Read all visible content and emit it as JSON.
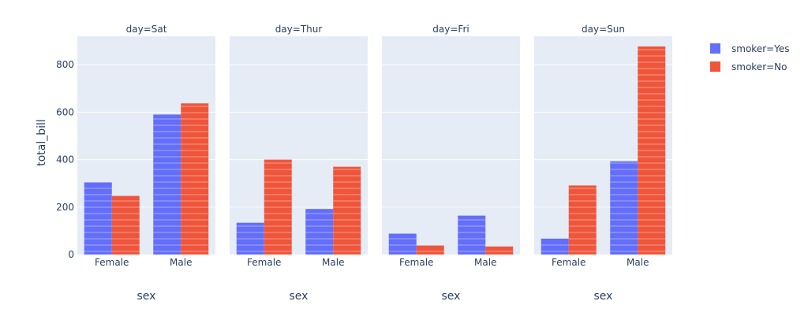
{
  "chart_data": {
    "type": "bar",
    "barmode": "group",
    "facet_titles": [
      "day=Sat",
      "day=Thur",
      "day=Fri",
      "day=Sun"
    ],
    "categories": [
      "Female",
      "Male"
    ],
    "xlabel": "sex",
    "ylabel": "total_bill",
    "ylim": [
      0,
      920
    ],
    "yticks": [
      0,
      200,
      400,
      600,
      800
    ],
    "grid": true,
    "legend_position": "top-right",
    "series": [
      {
        "name": "smoker=Yes",
        "color": "#636efa",
        "values": [
          [
            304,
            590
          ],
          [
            134,
            192
          ],
          [
            88,
            164
          ],
          [
            67,
            393
          ]
        ]
      },
      {
        "name": "smoker=No",
        "color": "#ef553b",
        "values": [
          [
            247,
            637
          ],
          [
            400,
            370
          ],
          [
            38,
            34
          ],
          [
            291,
            877
          ]
        ]
      }
    ]
  }
}
